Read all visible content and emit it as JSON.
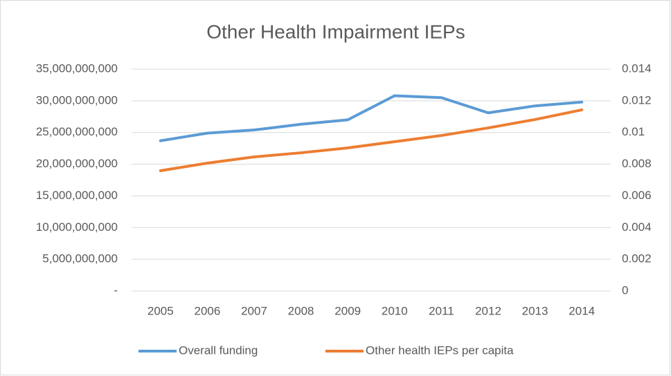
{
  "chart_data": {
    "type": "line",
    "title": "Other Health Impairment IEPs",
    "categories": [
      "2005",
      "2006",
      "2007",
      "2008",
      "2009",
      "2010",
      "2011",
      "2012",
      "2013",
      "2014"
    ],
    "series": [
      {
        "name": "Overall funding",
        "color": "#5b9bd5",
        "values": [
          23700000000,
          24900000000,
          25400000000,
          26300000000,
          27000000000,
          30800000000,
          30500000000,
          28100000000,
          29200000000,
          29800000000
        ]
      },
      {
        "name": "Other health IEPs per capita",
        "color": "#ed7d31",
        "axis": "y2",
        "values": [
          0.00759,
          0.00807,
          0.00846,
          0.00872,
          0.00903,
          0.00942,
          0.00981,
          0.01029,
          0.01082,
          0.01143
        ]
      }
    ],
    "ylim": [
      0,
      35000000000
    ],
    "yticks": [
      {
        "value": 0,
        "label": "-"
      },
      {
        "value": 5000000000,
        "label": "5,000,000,000"
      },
      {
        "value": 10000000000,
        "label": "10,000,000,000"
      },
      {
        "value": 15000000000,
        "label": "15,000,000,000"
      },
      {
        "value": 20000000000,
        "label": "20,000,000,000"
      },
      {
        "value": 25000000000,
        "label": "25,000,000,000"
      },
      {
        "value": 30000000000,
        "label": "30,000,000,000"
      },
      {
        "value": 35000000000,
        "label": "35,000,000,000"
      }
    ],
    "y2lim": [
      0,
      0.014
    ],
    "y2ticks": [
      0,
      0.002,
      0.004,
      0.006,
      0.008,
      0.01,
      0.012,
      0.014
    ],
    "grid": true,
    "legend": "bottom"
  }
}
